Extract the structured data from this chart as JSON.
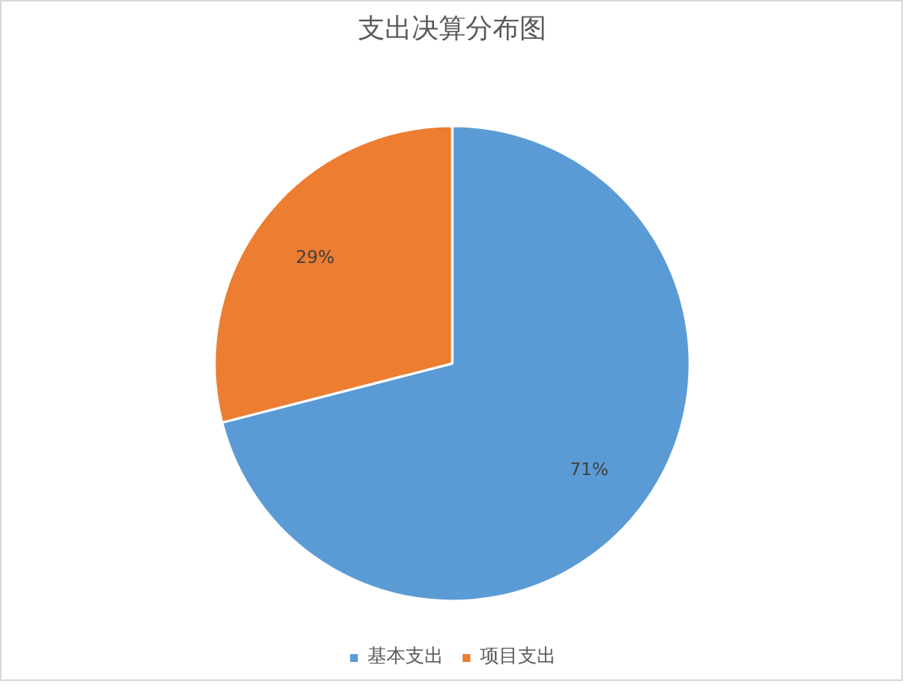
{
  "chart_data": {
    "type": "pie",
    "title": "支出决算分布图",
    "categories": [
      "基本支出",
      "项目支出"
    ],
    "values": [
      71,
      29
    ],
    "colors": [
      "#5b9bd5",
      "#ed7d31"
    ],
    "value_labels": [
      "71%",
      "29%"
    ],
    "legend": "bottom"
  }
}
